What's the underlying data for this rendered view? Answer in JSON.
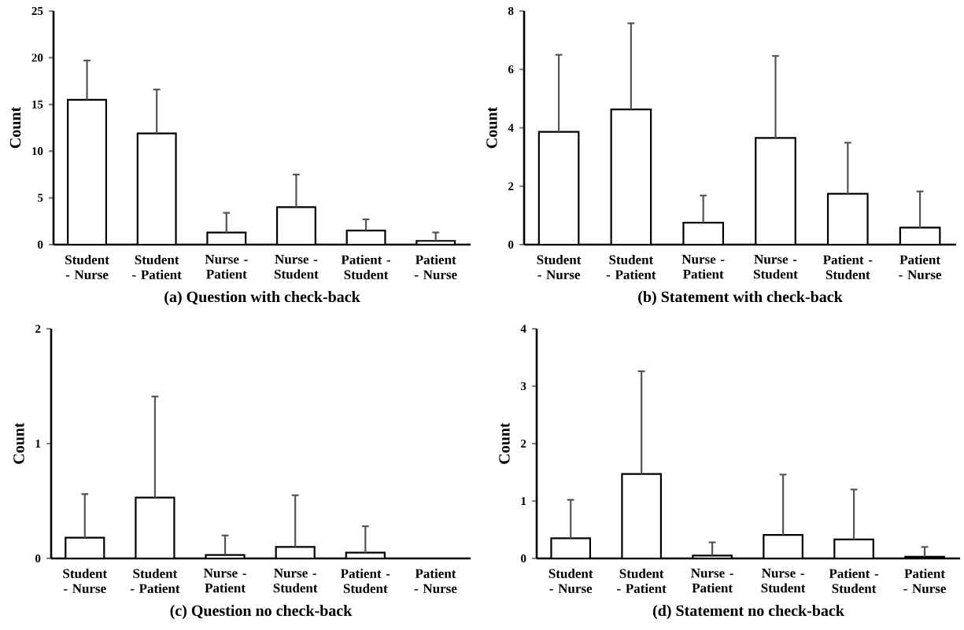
{
  "chart_data": [
    {
      "type": "bar",
      "title": "(a) Question with check-back",
      "ylabel": "Count",
      "categories": [
        "Student - Nurse",
        "Student - Patient",
        "Nurse - Patient",
        "Nurse - Student",
        "Patient - Student",
        "Patient - Nurse"
      ],
      "values": [
        15.5,
        11.9,
        1.3,
        4.0,
        1.5,
        0.4
      ],
      "errors": [
        [
          15.5,
          19.7
        ],
        [
          11.9,
          16.6
        ],
        [
          1.3,
          3.4
        ],
        [
          4.0,
          7.5
        ],
        [
          1.5,
          2.7
        ],
        [
          0.4,
          1.3
        ]
      ],
      "color": "#ffffff",
      "ylim": [
        0,
        25
      ],
      "yticks": [
        0,
        5,
        10,
        15,
        20,
        25
      ]
    },
    {
      "type": "bar",
      "title": "(b) Statement with check-back",
      "ylabel": "Count",
      "categories": [
        "Student - Nurse",
        "Student - Patient",
        "Nurse - Patient",
        "Nurse - Student",
        "Patient - Student",
        "Patient - Nurse"
      ],
      "values": [
        3.86,
        4.63,
        0.75,
        3.65,
        1.74,
        0.58
      ],
      "errors": [
        [
          3.86,
          6.5
        ],
        [
          4.63,
          7.58
        ],
        [
          0.75,
          1.68
        ],
        [
          3.65,
          6.46
        ],
        [
          1.74,
          3.49
        ],
        [
          0.58,
          1.82
        ]
      ],
      "color": "#ffffff",
      "ylim": [
        0,
        8
      ],
      "yticks": [
        0,
        2,
        4,
        6,
        8
      ]
    },
    {
      "type": "bar",
      "title": "(c) Question no check-back",
      "ylabel": "Count",
      "categories": [
        "Student - Nurse",
        "Student - Patient",
        "Nurse - Patient",
        "Nurse - Student",
        "Patient - Student",
        "Patient - Nurse"
      ],
      "values": [
        0.18,
        0.53,
        0.03,
        0.1,
        0.05,
        null
      ],
      "errors": [
        [
          0.18,
          0.56
        ],
        [
          0.53,
          1.41
        ],
        [
          0.03,
          0.2
        ],
        [
          0.1,
          0.55
        ],
        [
          0.05,
          0.28
        ],
        null
      ],
      "color": "#ffffff",
      "ylim": [
        0,
        2
      ],
      "yticks": [
        0,
        1,
        2
      ]
    },
    {
      "type": "bar",
      "title": "(d) Statement no check-back",
      "ylabel": "Count",
      "categories": [
        "Student - Nurse",
        "Student - Patient",
        "Nurse - Patient",
        "Nurse - Student",
        "Patient - Student",
        "Patient - Nurse"
      ],
      "values": [
        0.35,
        1.47,
        0.05,
        0.41,
        0.33,
        0.03
      ],
      "errors": [
        [
          0.35,
          1.02
        ],
        [
          1.47,
          3.26
        ],
        [
          0.05,
          0.28
        ],
        [
          0.41,
          1.46
        ],
        [
          0.33,
          1.2
        ],
        [
          0.03,
          0.2
        ]
      ],
      "color": "#ffffff",
      "ylim": [
        0,
        4
      ],
      "yticks": [
        0,
        1,
        2,
        3,
        4
      ]
    }
  ]
}
